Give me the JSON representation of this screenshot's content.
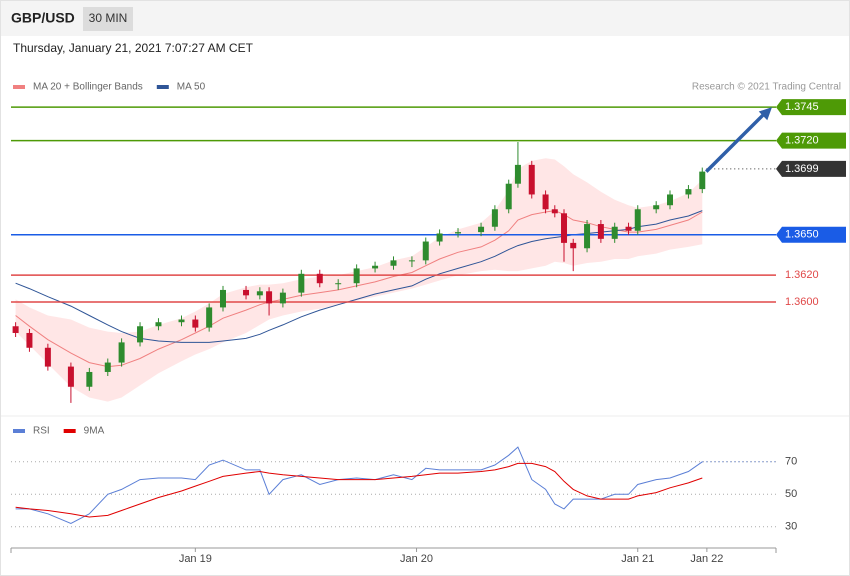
{
  "header": {
    "symbol": "GBP/USD",
    "interval": "30 MIN",
    "timestamp": "Thursday, January 21, 2021 7:07:27 AM CET",
    "credit": "Research © 2021 Trading Central"
  },
  "chart_data": [
    {
      "type": "candlestick",
      "x": [
        1,
        4,
        8,
        13,
        17,
        21,
        24,
        28,
        32,
        37,
        40,
        43,
        46,
        51,
        54,
        56,
        59,
        63,
        67,
        71,
        75,
        79,
        83,
        87,
        90,
        93,
        97,
        102,
        105,
        108,
        110,
        113,
        116,
        118,
        120,
        122,
        125,
        128,
        131,
        134,
        136,
        140,
        143,
        147,
        150
      ],
      "open": [
        1.3582,
        1.3577,
        1.3566,
        1.3552,
        1.3537,
        1.3548,
        1.3555,
        1.357,
        1.3582,
        1.3585,
        1.3587,
        1.3581,
        1.3596,
        1.3609,
        1.3605,
        1.3608,
        1.3599,
        1.3607,
        1.3621,
        1.3614,
        1.3614,
        1.3625,
        1.3627,
        1.3631,
        1.3631,
        1.3645,
        1.3651,
        1.3652,
        1.3656,
        1.3669,
        1.3688,
        1.3702,
        1.368,
        1.3669,
        1.3666,
        1.3644,
        1.364,
        1.3658,
        1.3647,
        1.3656,
        1.3653,
        1.3669,
        1.3672,
        1.368,
        1.3684
      ],
      "high": [
        1.3585,
        1.358,
        1.3569,
        1.3555,
        1.3551,
        1.3558,
        1.3573,
        1.3585,
        1.3588,
        1.359,
        1.359,
        1.3599,
        1.3612,
        1.3612,
        1.3611,
        1.3611,
        1.361,
        1.3624,
        1.3624,
        1.3617,
        1.3628,
        1.363,
        1.3634,
        1.3634,
        1.3648,
        1.3654,
        1.3655,
        1.3659,
        1.3672,
        1.3691,
        1.3719,
        1.3705,
        1.3683,
        1.3672,
        1.3669,
        1.3647,
        1.3661,
        1.3661,
        1.3659,
        1.3659,
        1.3672,
        1.3675,
        1.3683,
        1.3687,
        1.37
      ],
      "low": [
        1.3574,
        1.3563,
        1.3549,
        1.3525,
        1.3534,
        1.3545,
        1.3552,
        1.3567,
        1.3579,
        1.3582,
        1.3578,
        1.3578,
        1.3593,
        1.3602,
        1.3602,
        1.359,
        1.3596,
        1.3604,
        1.3611,
        1.3609,
        1.3611,
        1.3622,
        1.3624,
        1.3626,
        1.3628,
        1.3642,
        1.3648,
        1.3649,
        1.3653,
        1.3666,
        1.3685,
        1.3677,
        1.3666,
        1.3663,
        1.363,
        1.3623,
        1.3637,
        1.3644,
        1.3644,
        1.365,
        1.365,
        1.3666,
        1.3669,
        1.3677,
        1.3681
      ],
      "close": [
        1.3577,
        1.3566,
        1.3552,
        1.3537,
        1.3548,
        1.3555,
        1.357,
        1.3582,
        1.3585,
        1.3587,
        1.3581,
        1.3596,
        1.3609,
        1.3605,
        1.3608,
        1.3599,
        1.3607,
        1.3621,
        1.3614,
        1.3614,
        1.3625,
        1.3627,
        1.3631,
        1.3631,
        1.3645,
        1.3651,
        1.3652,
        1.3656,
        1.3669,
        1.3688,
        1.3702,
        1.368,
        1.3669,
        1.3666,
        1.3644,
        1.364,
        1.3658,
        1.3647,
        1.3656,
        1.3653,
        1.3669,
        1.3672,
        1.368,
        1.3684,
        1.3697
      ],
      "up_color": "#2e8b2e",
      "down_color": "#c8102e",
      "series": [
        {
          "name": "MA 20 + Bollinger Bands",
          "color": "#f08080",
          "band_color": "#ffd6d6",
          "values": [
            1.359,
            1.3582,
            1.3572,
            1.3562,
            1.3555,
            1.3552,
            1.3553,
            1.3558,
            1.3565,
            1.3572,
            1.3577,
            1.3582,
            1.3588,
            1.3594,
            1.3598,
            1.36,
            1.3602,
            1.3605,
            1.3607,
            1.3609,
            1.3612,
            1.3615,
            1.3619,
            1.3622,
            1.3627,
            1.3632,
            1.3637,
            1.3641,
            1.3646,
            1.3653,
            1.3661,
            1.3665,
            1.3667,
            1.3668,
            1.3665,
            1.3661,
            1.3659,
            1.3656,
            1.3654,
            1.3652,
            1.3652,
            1.3654,
            1.3657,
            1.3661,
            1.3667
          ],
          "upper": [
            1.3602,
            1.3596,
            1.359,
            1.3587,
            1.3581,
            1.3578,
            1.3577,
            1.3578,
            1.3583,
            1.3588,
            1.3593,
            1.3599,
            1.3606,
            1.3611,
            1.3613,
            1.3613,
            1.3614,
            1.3617,
            1.3619,
            1.362,
            1.3623,
            1.3626,
            1.3631,
            1.3634,
            1.3641,
            1.3648,
            1.3654,
            1.3659,
            1.3668,
            1.3683,
            1.3699,
            1.3705,
            1.3707,
            1.3706,
            1.3701,
            1.3695,
            1.3689,
            1.3682,
            1.3676,
            1.3672,
            1.367,
            1.3672,
            1.3675,
            1.3681,
            1.3691
          ],
          "lower": [
            1.3578,
            1.3568,
            1.3554,
            1.3537,
            1.3529,
            1.3526,
            1.3529,
            1.3538,
            1.3547,
            1.3556,
            1.3561,
            1.3565,
            1.357,
            1.3577,
            1.3583,
            1.3587,
            1.359,
            1.3593,
            1.3595,
            1.3598,
            1.3601,
            1.3604,
            1.3607,
            1.361,
            1.3613,
            1.3616,
            1.362,
            1.3623,
            1.3624,
            1.3623,
            1.3623,
            1.3625,
            1.3627,
            1.363,
            1.3629,
            1.3627,
            1.3629,
            1.363,
            1.3632,
            1.3632,
            1.3634,
            1.3636,
            1.3639,
            1.3641,
            1.3643
          ]
        },
        {
          "name": "MA 50",
          "color": "#2f5597",
          "values": [
            1.3614,
            1.361,
            1.3604,
            1.3597,
            1.359,
            1.3583,
            1.3578,
            1.3573,
            1.3571,
            1.357,
            1.357,
            1.357,
            1.3571,
            1.3573,
            1.3576,
            1.3579,
            1.3583,
            1.3589,
            1.3594,
            1.3598,
            1.3602,
            1.3606,
            1.3609,
            1.3612,
            1.3617,
            1.3621,
            1.3625,
            1.363,
            1.3634,
            1.3639,
            1.3642,
            1.3645,
            1.3647,
            1.3648,
            1.3649,
            1.365,
            1.3651,
            1.3652,
            1.3653,
            1.3654,
            1.3656,
            1.3658,
            1.3661,
            1.3664,
            1.3668
          ]
        }
      ],
      "levels": [
        {
          "value": 1.3745,
          "label": "1.3745",
          "color": "#4e9a06",
          "style": "box",
          "line": "solid"
        },
        {
          "value": 1.372,
          "label": "1.3720",
          "color": "#4e9a06",
          "style": "box",
          "line": "solid"
        },
        {
          "value": 1.3699,
          "label": "1.3699",
          "color": "#333333",
          "style": "box",
          "line": "dotted"
        },
        {
          "value": 1.365,
          "label": "1.3650",
          "color": "#1a5ce6",
          "style": "box",
          "line": "solid"
        },
        {
          "value": 1.362,
          "label": "1.3620",
          "color": "#e04848",
          "style": "text",
          "line": "solid"
        },
        {
          "value": 1.36,
          "label": "1.3600",
          "color": "#e04848",
          "style": "text",
          "line": "solid"
        }
      ],
      "arrow_color": "#2f5fa8",
      "xlim": [
        0,
        166
      ],
      "ylim": [
        1.3516,
        1.378
      ]
    },
    {
      "type": "line",
      "x": [
        1,
        4,
        8,
        13,
        17,
        21,
        24,
        28,
        32,
        37,
        40,
        43,
        46,
        51,
        54,
        56,
        59,
        63,
        67,
        71,
        75,
        79,
        83,
        87,
        90,
        93,
        97,
        102,
        105,
        108,
        110,
        113,
        116,
        118,
        120,
        122,
        125,
        128,
        131,
        134,
        136,
        140,
        143,
        147,
        150
      ],
      "series": [
        {
          "name": "RSI",
          "color": "#5b7fd6",
          "values": [
            41,
            41,
            38,
            32,
            38,
            50,
            53,
            59,
            60,
            60,
            59,
            68,
            71,
            65,
            65,
            50,
            59,
            62,
            56,
            59,
            60,
            59,
            62,
            59,
            66,
            65,
            65,
            65,
            68,
            74,
            79,
            59,
            53,
            44,
            41,
            47,
            47,
            47,
            50,
            50,
            56,
            59,
            60,
            64,
            70
          ]
        },
        {
          "name": "9MA",
          "color": "#e00000",
          "values": [
            42,
            41,
            40,
            38,
            36,
            37,
            40,
            44,
            48,
            52,
            55,
            58,
            61,
            63,
            64,
            63,
            62,
            61,
            60,
            59,
            59,
            59,
            60,
            61,
            62,
            63,
            63,
            64,
            65,
            67,
            69,
            69,
            67,
            64,
            58,
            53,
            49,
            47,
            47,
            47,
            49,
            51,
            54,
            57,
            60
          ]
        }
      ],
      "xlim": [
        0,
        166
      ],
      "ylim": [
        20,
        100
      ],
      "yticks": [
        30,
        50,
        70
      ],
      "xticks": [
        {
          "value": 40,
          "label": "Jan 19"
        },
        {
          "value": 88,
          "label": "Jan 20"
        },
        {
          "value": 136,
          "label": "Jan 21"
        },
        {
          "value": 151,
          "label": "Jan 22"
        }
      ]
    }
  ]
}
